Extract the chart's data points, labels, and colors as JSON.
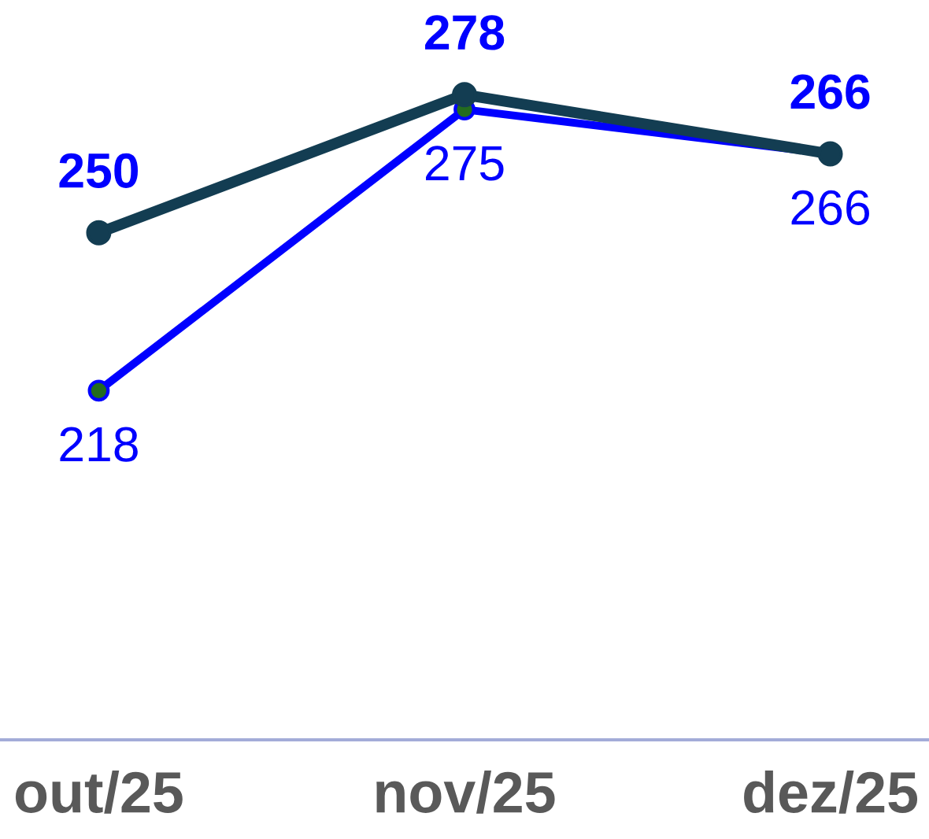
{
  "chart_data": {
    "type": "line",
    "categories": [
      "out/25",
      "nov/25",
      "dez/25"
    ],
    "series": [
      {
        "color": "#133d52",
        "values": [
          250,
          278,
          266
        ]
      },
      {
        "color": "#0000ff",
        "values": [
          218,
          275,
          266
        ]
      }
    ],
    "marker": "circle",
    "data_labels": true
  }
}
